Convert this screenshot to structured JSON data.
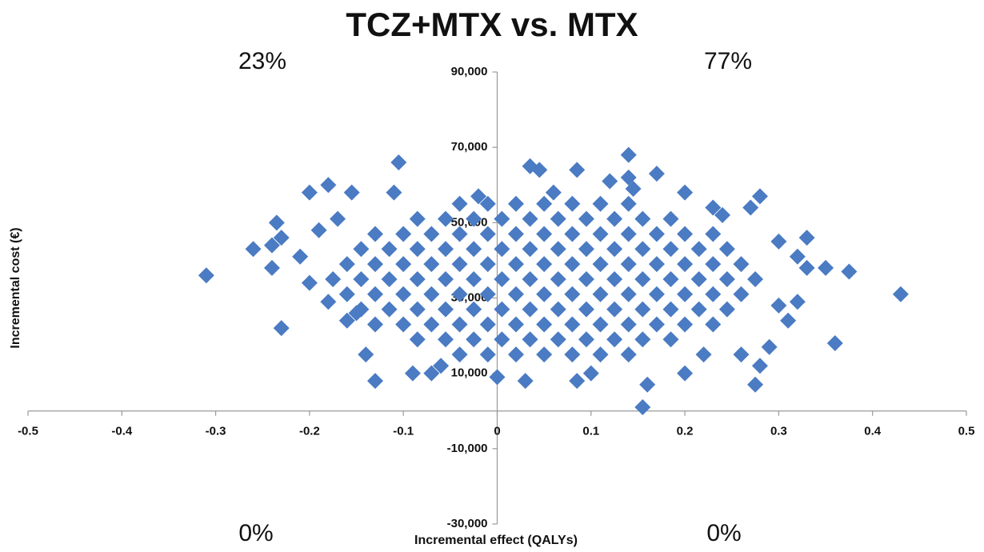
{
  "chart_data": {
    "type": "scatter",
    "title": "TCZ+MTX vs. MTX",
    "x_label": "Incremental effect (QALYs)",
    "y_label": "Incremental cost (€)",
    "annotations": [
      "23%",
      "77%",
      "0%",
      "0%"
    ],
    "xlim": [
      -0.5,
      0.5
    ],
    "xticks": [
      -0.5,
      -0.4,
      -0.3,
      -0.2,
      -0.1,
      0,
      0.1,
      0.2,
      0.3,
      0.4,
      0.5
    ],
    "ylim": [
      -30000,
      90000
    ],
    "yticks": [
      {
        "value": -30000,
        "label": "-30,000"
      },
      {
        "value": -10000,
        "label": "-10,000"
      },
      {
        "value": 10000,
        "label": "10,000"
      },
      {
        "value": 30000,
        "label": "30,000"
      },
      {
        "value": 50000,
        "label": "50,000"
      },
      {
        "value": 70000,
        "label": "70,000"
      },
      {
        "value": 90000,
        "label": "90,000"
      }
    ],
    "grid": false,
    "series": [
      {
        "color": "#4a7bc3",
        "x": [
          -0.04,
          -0.01,
          0.02,
          0.05,
          0.08,
          0.11,
          0.14,
          -0.085,
          -0.055,
          -0.025,
          0.005,
          0.035,
          0.065,
          0.095,
          0.125,
          0.155,
          0.185,
          -0.13,
          -0.1,
          -0.07,
          -0.04,
          -0.01,
          0.02,
          0.05,
          0.08,
          0.11,
          0.14,
          0.17,
          0.2,
          0.23,
          -0.145,
          -0.115,
          -0.085,
          -0.055,
          -0.025,
          0.005,
          0.035,
          0.065,
          0.095,
          0.125,
          0.155,
          0.185,
          0.215,
          0.245,
          -0.16,
          -0.13,
          -0.1,
          -0.07,
          -0.04,
          -0.01,
          0.02,
          0.05,
          0.08,
          0.11,
          0.14,
          0.17,
          0.2,
          0.23,
          0.26,
          -0.175,
          -0.145,
          -0.115,
          -0.085,
          -0.055,
          -0.025,
          0.005,
          0.035,
          0.065,
          0.095,
          0.125,
          0.155,
          0.185,
          0.215,
          0.245,
          0.275,
          -0.16,
          -0.13,
          -0.1,
          -0.07,
          -0.04,
          -0.01,
          0.02,
          0.05,
          0.08,
          0.11,
          0.14,
          0.17,
          0.2,
          0.23,
          0.26,
          -0.145,
          -0.115,
          -0.085,
          -0.055,
          -0.025,
          0.005,
          0.035,
          0.065,
          0.095,
          0.125,
          0.155,
          0.185,
          0.215,
          0.245,
          -0.13,
          -0.1,
          -0.07,
          -0.04,
          -0.01,
          0.02,
          0.05,
          0.08,
          0.11,
          0.14,
          0.17,
          0.2,
          0.23,
          -0.085,
          -0.055,
          -0.025,
          0.005,
          0.035,
          0.065,
          0.095,
          0.125,
          0.155,
          0.185,
          -0.04,
          -0.01,
          0.02,
          0.05,
          0.08,
          0.11,
          0.14,
          -0.31,
          -0.26,
          -0.24,
          -0.235,
          -0.23,
          -0.24,
          -0.23,
          -0.21,
          -0.2,
          -0.18,
          -0.2,
          -0.18,
          -0.19,
          -0.155,
          -0.13,
          -0.14,
          -0.105,
          -0.11,
          -0.09,
          -0.07,
          -0.06,
          0.03,
          0.035,
          0.045,
          0.085,
          0.085,
          0.12,
          0.14,
          0.14,
          0.145,
          0.17,
          0.155,
          0.16,
          0.2,
          0.23,
          0.24,
          0.27,
          0.28,
          0.275,
          0.26,
          0.28,
          0.29,
          0.3,
          0.31,
          0.32,
          0.33,
          0.33,
          0.35,
          0.36,
          0.375,
          0.43,
          0.3,
          0.32,
          -0.16,
          -0.15,
          0.2,
          0.1,
          0,
          -0.02,
          0.06,
          0.22,
          -0.17
        ],
        "values": [
          15000,
          15000,
          15000,
          15000,
          15000,
          15000,
          15000,
          19000,
          19000,
          19000,
          19000,
          19000,
          19000,
          19000,
          19000,
          19000,
          19000,
          23000,
          23000,
          23000,
          23000,
          23000,
          23000,
          23000,
          23000,
          23000,
          23000,
          23000,
          23000,
          23000,
          27000,
          27000,
          27000,
          27000,
          27000,
          27000,
          27000,
          27000,
          27000,
          27000,
          27000,
          27000,
          27000,
          27000,
          31000,
          31000,
          31000,
          31000,
          31000,
          31000,
          31000,
          31000,
          31000,
          31000,
          31000,
          31000,
          31000,
          31000,
          31000,
          35000,
          35000,
          35000,
          35000,
          35000,
          35000,
          35000,
          35000,
          35000,
          35000,
          35000,
          35000,
          35000,
          35000,
          35000,
          35000,
          39000,
          39000,
          39000,
          39000,
          39000,
          39000,
          39000,
          39000,
          39000,
          39000,
          39000,
          39000,
          39000,
          39000,
          39000,
          43000,
          43000,
          43000,
          43000,
          43000,
          43000,
          43000,
          43000,
          43000,
          43000,
          43000,
          43000,
          43000,
          43000,
          47000,
          47000,
          47000,
          47000,
          47000,
          47000,
          47000,
          47000,
          47000,
          47000,
          47000,
          47000,
          47000,
          51000,
          51000,
          51000,
          51000,
          51000,
          51000,
          51000,
          51000,
          51000,
          51000,
          55000,
          55000,
          55000,
          55000,
          55000,
          55000,
          55000,
          36000,
          43000,
          44000,
          50000,
          46000,
          38000,
          22000,
          41000,
          58000,
          60000,
          34000,
          29000,
          48000,
          58000,
          8000,
          15000,
          66000,
          58000,
          10000,
          10000,
          12000,
          8000,
          65000,
          64000,
          64000,
          8000,
          61000,
          68000,
          62000,
          59000,
          63000,
          1000,
          7000,
          58000,
          54000,
          52000,
          54000,
          57000,
          7000,
          15000,
          12000,
          17000,
          45000,
          24000,
          41000,
          46000,
          38000,
          38000,
          18000,
          37000,
          31000,
          28000,
          29000,
          24000,
          26000,
          10000,
          10000,
          9000,
          57000,
          58000,
          15000,
          51000
        ]
      }
    ]
  }
}
